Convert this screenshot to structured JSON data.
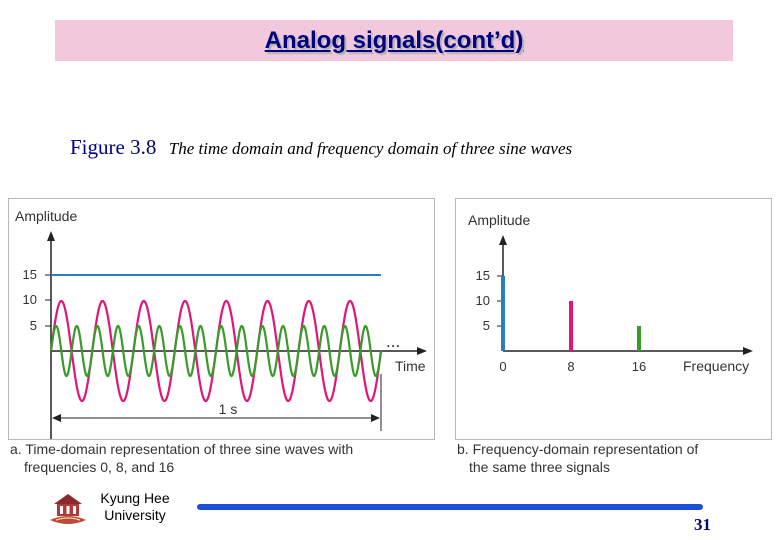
{
  "title": "Analog signals(cont’d)",
  "caption": {
    "number": "Figure 3.8",
    "text": "The time domain and frequency domain of three sine waves"
  },
  "panel_a": {
    "y_label": "Amplitude",
    "x_label": "Time",
    "y_ticks": [
      "15",
      "10",
      "5"
    ],
    "duration_label": "1 s",
    "ellipsis": "...",
    "subtitle_line1": "a. Time-domain representation of three sine waves with",
    "subtitle_line2": "frequencies 0, 8, and 16"
  },
  "panel_b": {
    "y_label": "Amplitude",
    "x_label": "Frequency",
    "y_ticks": [
      "15",
      "10",
      "5"
    ],
    "x_ticks": [
      "0",
      "8",
      "16"
    ],
    "subtitle_line1": "b. Frequency-domain representation of",
    "subtitle_line2": "the same three signals"
  },
  "signals": [
    {
      "frequency": 0,
      "amplitude": 15,
      "color": "#2a7fb8"
    },
    {
      "frequency": 8,
      "amplitude": 10,
      "color": "#e0157a"
    },
    {
      "frequency": 16,
      "amplitude": 5,
      "color": "#3a9a2a"
    }
  ],
  "footer": {
    "university_line1": "Kyung Hee",
    "university_line2": "University",
    "page_number": "31"
  },
  "colors": {
    "title_bg": "#f2c9dc",
    "title_text": "#000080",
    "footer_rule": "#1a50d8"
  }
}
